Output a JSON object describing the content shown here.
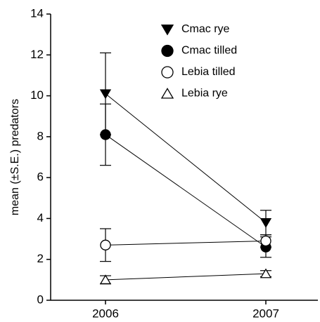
{
  "chart_data": {
    "type": "line",
    "ylabel": "mean (±S.E.) predators",
    "categories": [
      "2006",
      "2007"
    ],
    "series": [
      {
        "name": "Cmac rye",
        "color": "#000000",
        "marker": "triangle-down",
        "filled": true,
        "values": [
          10.1,
          3.8
        ],
        "errors": [
          2.0,
          0.6
        ]
      },
      {
        "name": "Cmac tilled",
        "color": "#000000",
        "marker": "circle",
        "filled": true,
        "values": [
          8.1,
          2.6
        ],
        "errors": [
          1.5,
          0.5
        ]
      },
      {
        "name": "Lebia tilled",
        "color": "#000000",
        "marker": "circle",
        "filled": false,
        "values": [
          2.7,
          2.9
        ],
        "errors": [
          0.8,
          0.3
        ]
      },
      {
        "name": "Lebia rye",
        "color": "#000000",
        "marker": "triangle-up",
        "filled": false,
        "values": [
          1.0,
          1.3
        ],
        "errors": [
          0.2,
          0.15
        ]
      }
    ],
    "ylim": [
      0,
      14
    ],
    "yticks": [
      0,
      2,
      4,
      6,
      8,
      10,
      12,
      14
    ],
    "grid": false
  }
}
